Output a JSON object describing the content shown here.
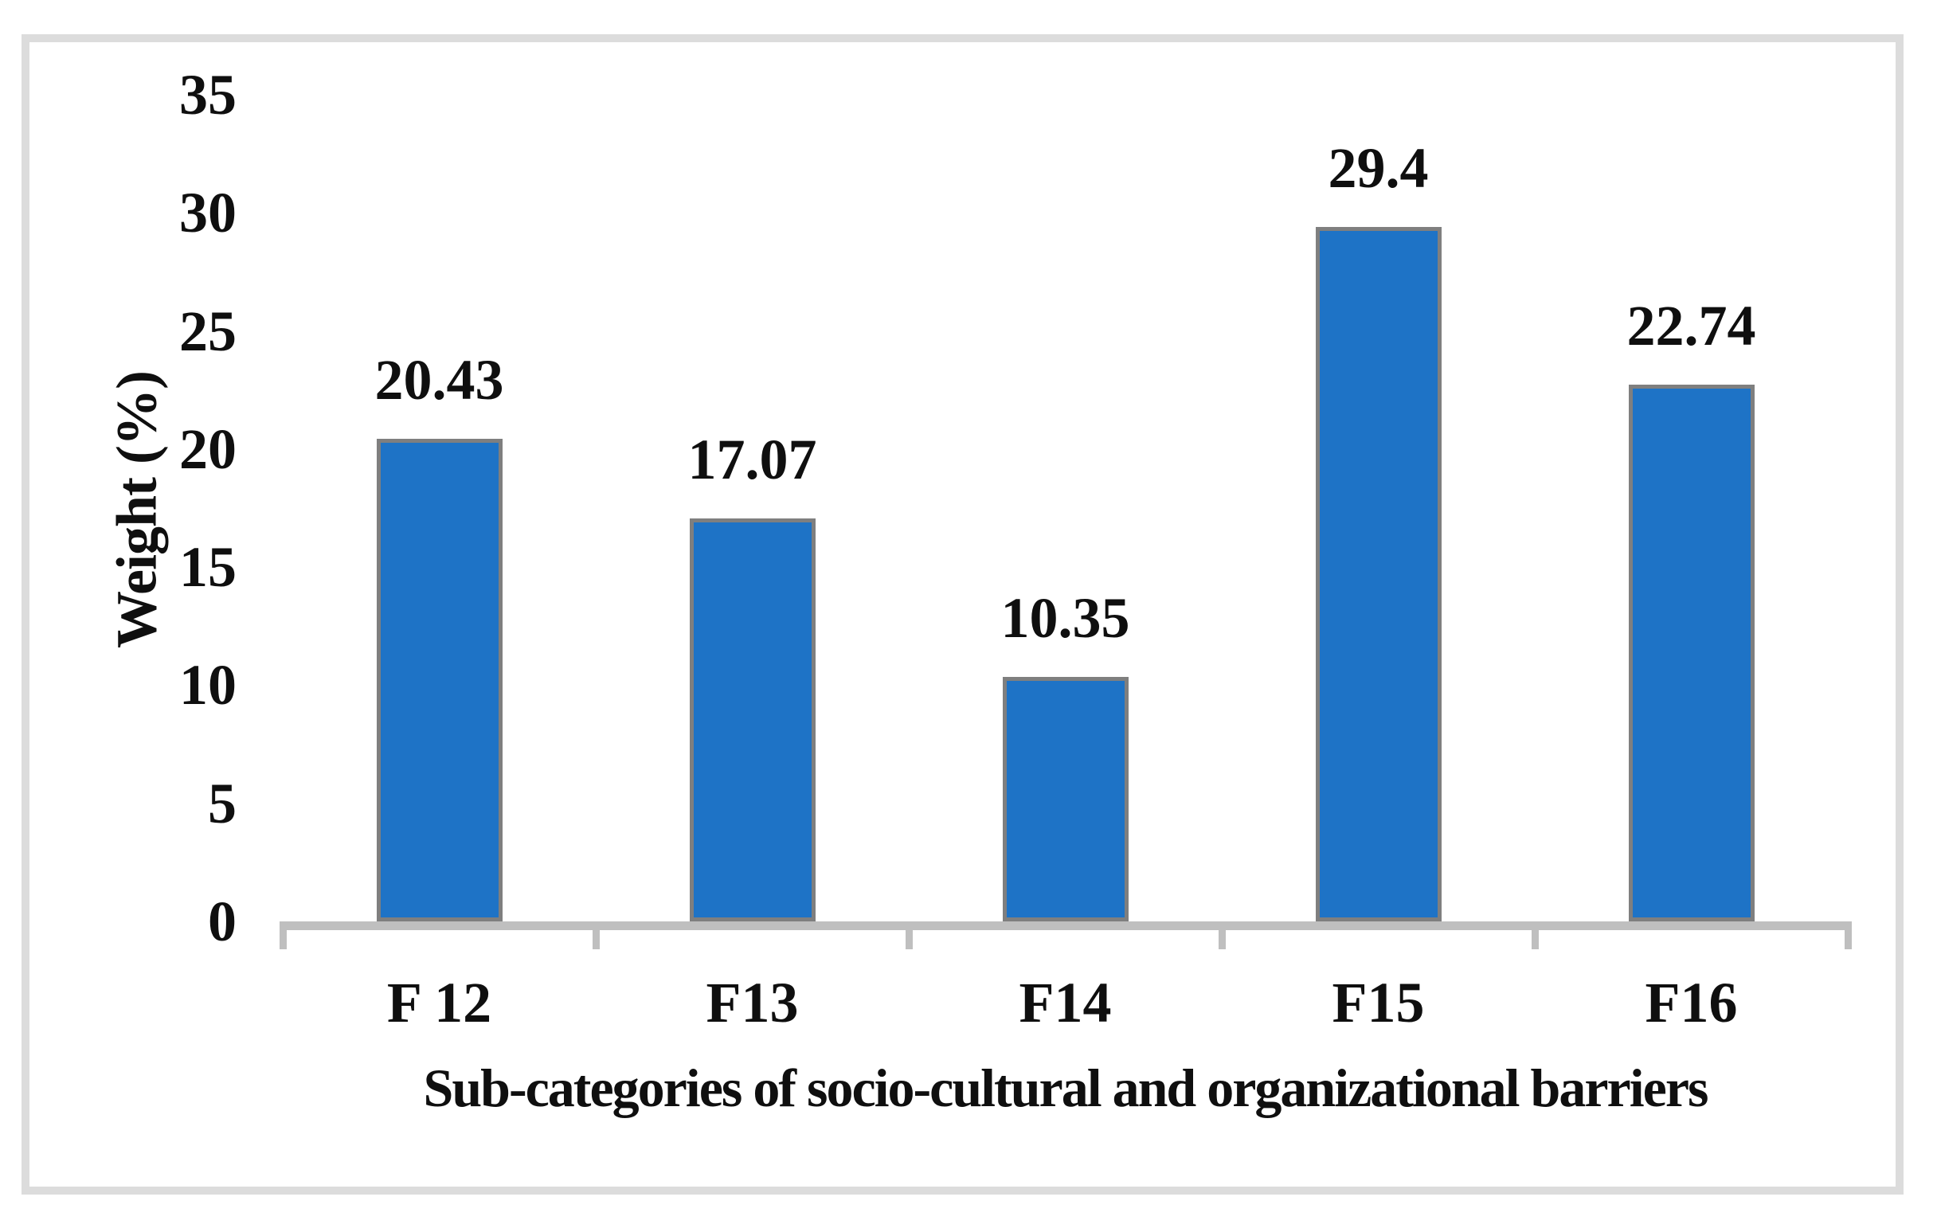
{
  "figure": {
    "background_color": "#ffffff",
    "frame_border_color": "#dcdcdc",
    "text_color": "#0f0f0f"
  },
  "chart_data": {
    "type": "bar",
    "title": "",
    "categories": [
      "F 12",
      "F13",
      "F14",
      "F15",
      "F16"
    ],
    "values": [
      20.43,
      17.07,
      10.35,
      29.4,
      22.74
    ],
    "data_labels": [
      "20.43",
      "17.07",
      "10.35",
      "29.4",
      "22.74"
    ],
    "xlabel": "Sub-categories of socio-cultural and organizational barriers",
    "ylabel": "Weight (%)",
    "ylim": [
      0,
      35
    ],
    "ytick_step": 5,
    "ytick_labels": [
      "0",
      "5",
      "10",
      "15",
      "20",
      "25",
      "30",
      "35"
    ],
    "grid": false,
    "legend": "none",
    "bar_fill_color": "#1e73c6",
    "bar_border_color": "#7f7f7f",
    "axis_line_color": "#bfbfbf"
  }
}
